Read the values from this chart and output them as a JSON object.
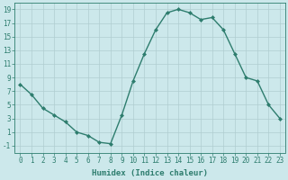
{
  "x": [
    0,
    1,
    2,
    3,
    4,
    5,
    6,
    7,
    8,
    9,
    10,
    11,
    12,
    13,
    14,
    15,
    16,
    17,
    18,
    19,
    20,
    21,
    22,
    23
  ],
  "y": [
    8,
    6.5,
    4.5,
    3.5,
    2.5,
    1,
    0.5,
    -0.5,
    -0.7,
    3.5,
    8.5,
    12.5,
    16,
    18.5,
    19,
    18.5,
    17.5,
    17.8,
    16,
    12.5,
    9,
    8.5,
    5,
    3
  ],
  "line_color": "#2e7d6e",
  "marker": "D",
  "marker_size": 2.0,
  "bg_color": "#cce8eb",
  "grid_color": "#b0cdd0",
  "xlabel": "Humidex (Indice chaleur)",
  "xlim": [
    -0.5,
    23.5
  ],
  "ylim": [
    -2,
    20
  ],
  "yticks": [
    -1,
    1,
    3,
    5,
    7,
    9,
    11,
    13,
    15,
    17,
    19
  ],
  "xticks": [
    0,
    1,
    2,
    3,
    4,
    5,
    6,
    7,
    8,
    9,
    10,
    11,
    12,
    13,
    14,
    15,
    16,
    17,
    18,
    19,
    20,
    21,
    22,
    23
  ],
  "tick_color": "#2e7d6e",
  "label_color": "#2e7d6e",
  "tick_fontsize": 5.5,
  "xlabel_fontsize": 6.5,
  "linewidth": 1.0
}
